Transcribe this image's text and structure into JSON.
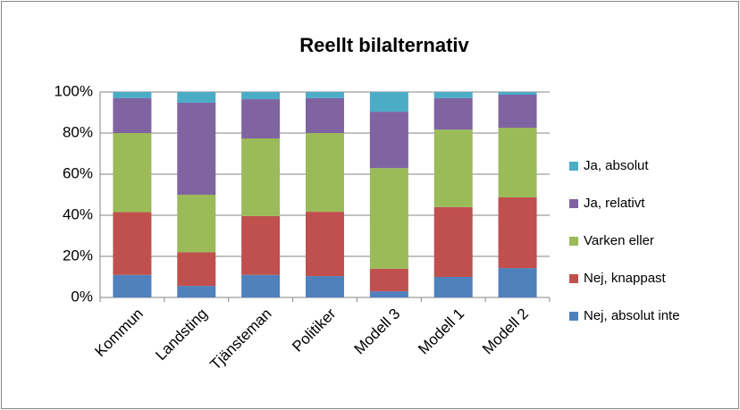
{
  "chart_data": {
    "type": "stacked_bar",
    "title": "Reellt bilalternativ",
    "categories": [
      "Kommun",
      "Landsting",
      "Tjänsteman",
      "Politiker",
      "Modell 3",
      "Modell 1",
      "Modell 2"
    ],
    "series": [
      {
        "name": "Nej, absolut inte",
        "color": "#4f81bd",
        "values": [
          11,
          5.6,
          11,
          10.4,
          3,
          10,
          14.3
        ]
      },
      {
        "name": "Nej, knappast",
        "color": "#c0504d",
        "values": [
          30.5,
          16.4,
          28.6,
          31.3,
          11,
          34,
          34.4
        ]
      },
      {
        "name": "Varken eller",
        "color": "#9bbb59",
        "values": [
          38.5,
          28,
          37.8,
          38.3,
          49,
          37.7,
          33.9
        ]
      },
      {
        "name": "Ja, relativt",
        "color": "#8064a2",
        "values": [
          17,
          44.8,
          19.1,
          17,
          27.4,
          15.3,
          16.1
        ]
      },
      {
        "name": "Ja, absolut",
        "color": "#4bacc6",
        "values": [
          3,
          5.2,
          3.5,
          3,
          9.6,
          3,
          1.3
        ]
      }
    ],
    "ylim": [
      0,
      100
    ],
    "yticks": [
      {
        "value": 0,
        "label": "0%"
      },
      {
        "value": 20,
        "label": "20%"
      },
      {
        "value": 40,
        "label": "40%"
      },
      {
        "value": 60,
        "label": "60%"
      },
      {
        "value": 80,
        "label": "80%"
      },
      {
        "value": 100,
        "label": "100%"
      }
    ],
    "grid": true,
    "legend": "right"
  }
}
